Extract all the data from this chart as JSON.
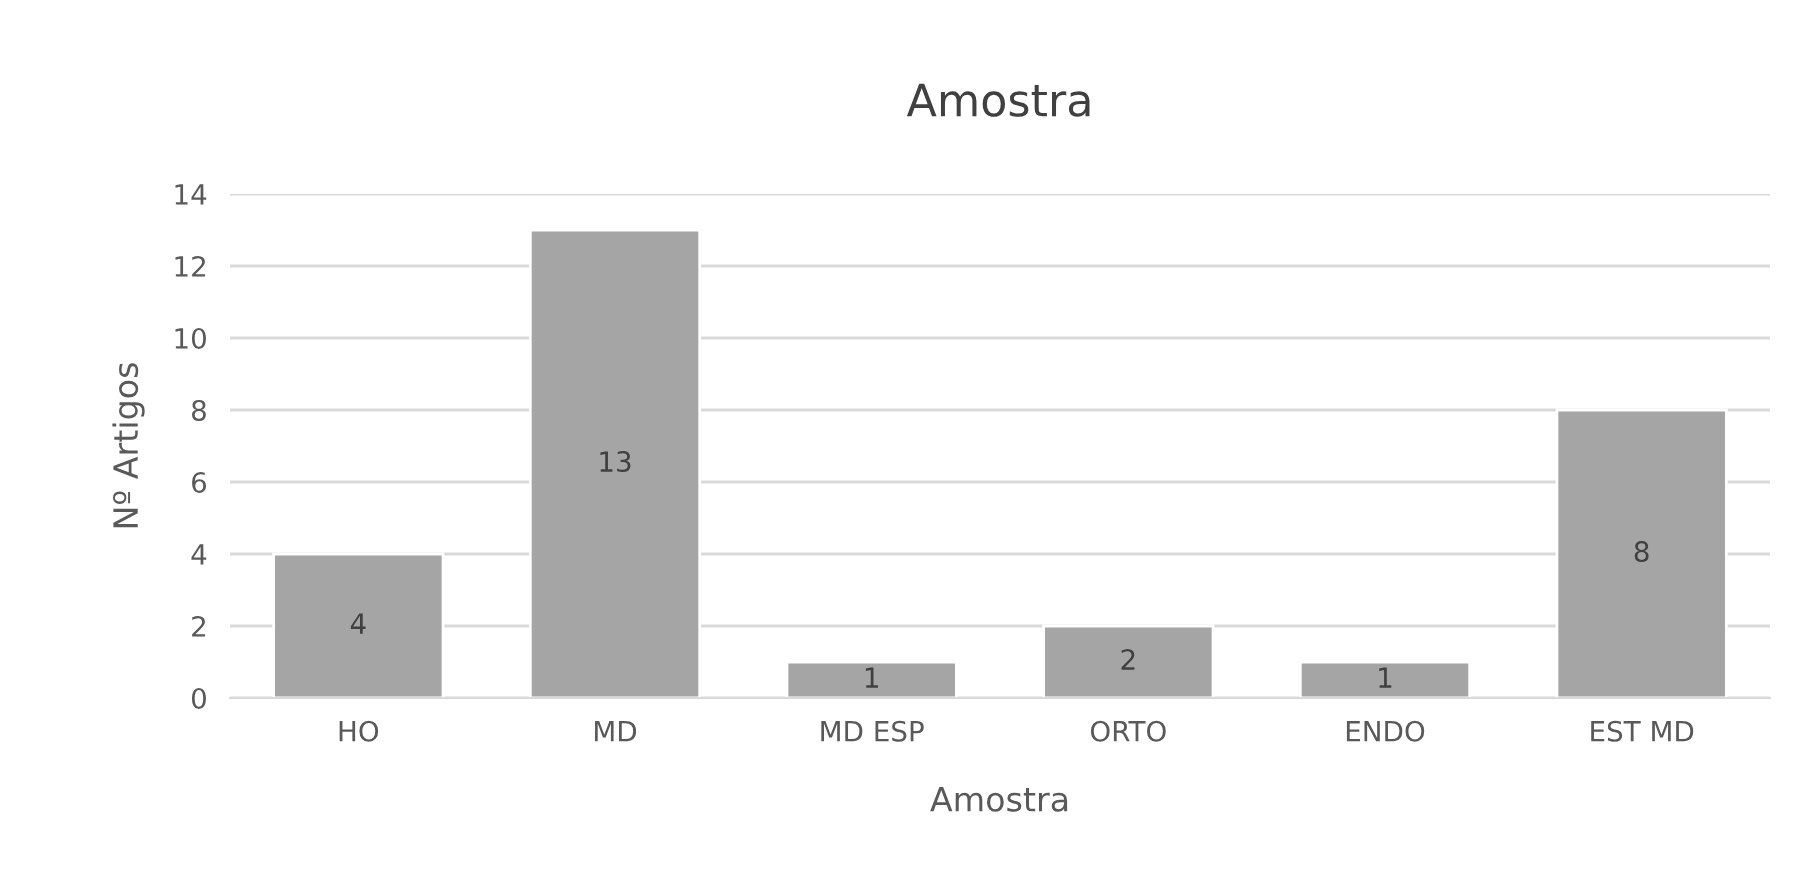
{
  "chart_data": {
    "type": "bar",
    "title": "Amostra",
    "xlabel": "Amostra",
    "ylabel": "Nº Artigos",
    "categories": [
      "HO",
      "MD",
      "MD ESP",
      "ORTO",
      "ENDO",
      "EST MD"
    ],
    "values": [
      4,
      13,
      1,
      2,
      1,
      8
    ],
    "color": "#a5a5a5",
    "ylim": [
      0,
      14
    ],
    "yticks": [
      0,
      2,
      4,
      6,
      8,
      10,
      12,
      14
    ],
    "grid": "y",
    "data_labels": true,
    "legend": false
  }
}
